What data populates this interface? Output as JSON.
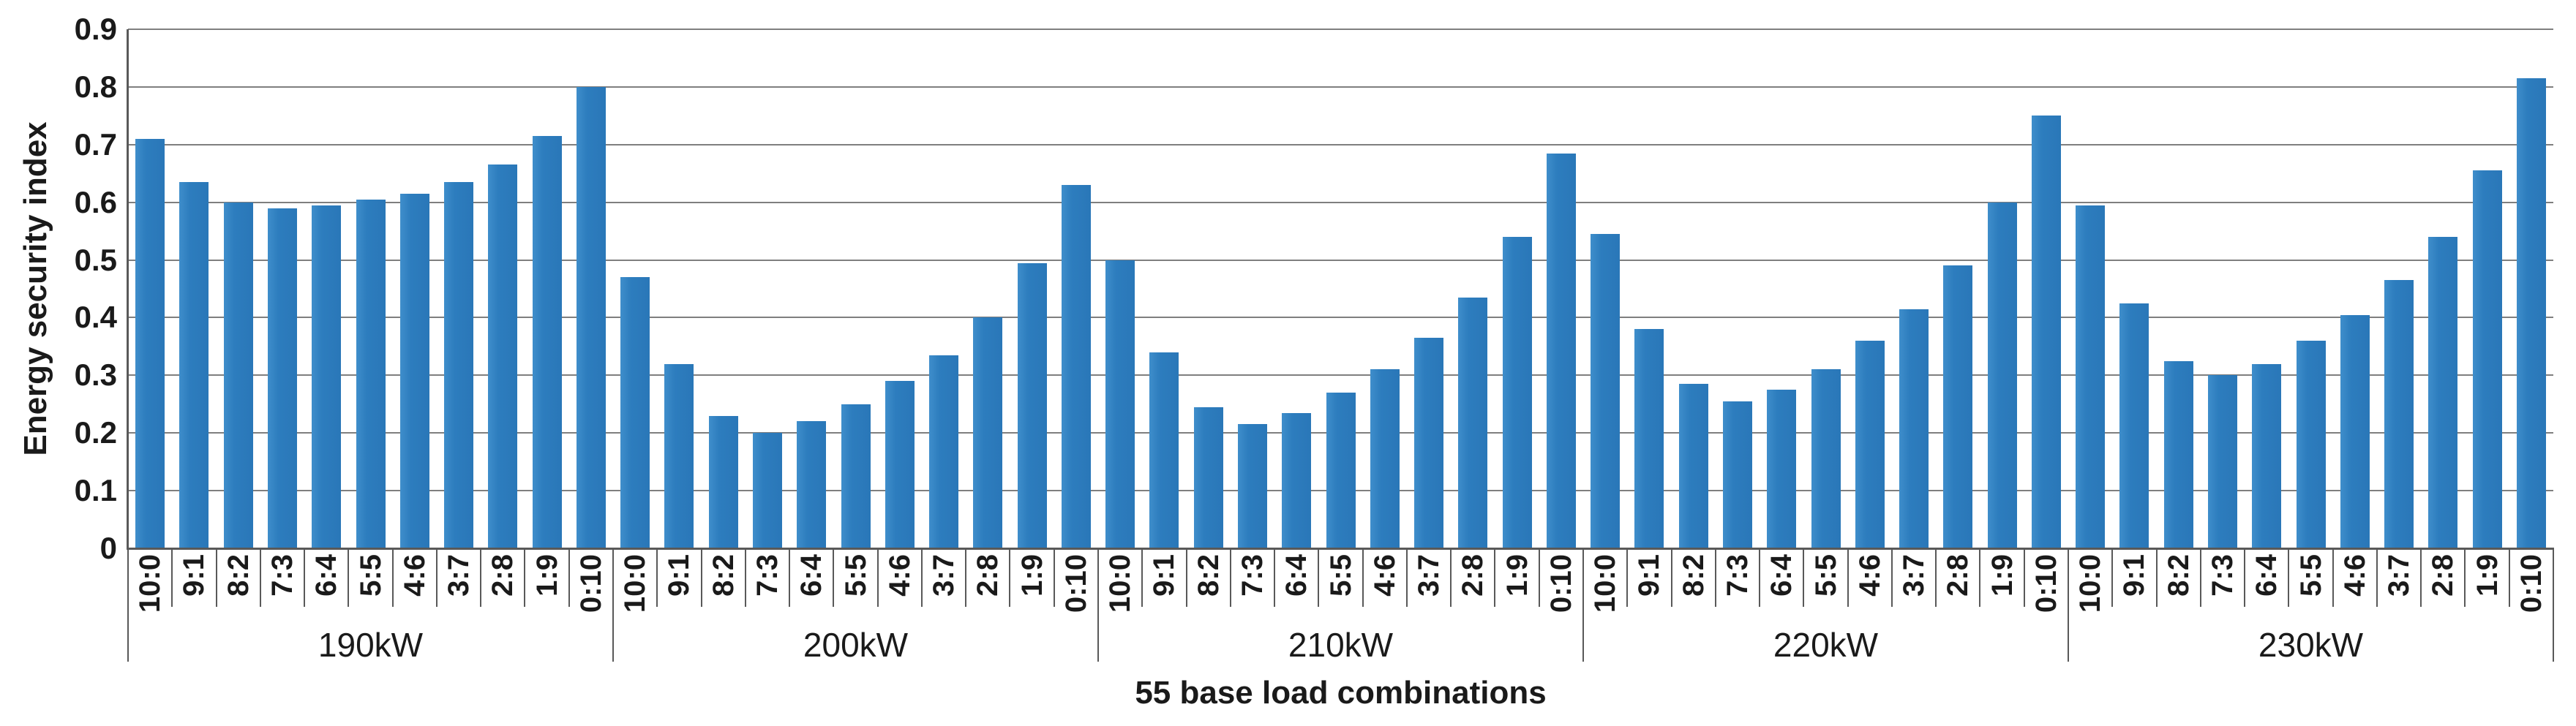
{
  "chart_data": {
    "type": "bar",
    "title": "",
    "xlabel": "55 base load combinations",
    "ylabel": "Energy security index",
    "ylim": [
      0,
      0.9
    ],
    "ytick_step": 0.1,
    "ytick_labels": [
      "0",
      "0.1",
      "0.2",
      "0.3",
      "0.4",
      "0.5",
      "0.6",
      "0.7",
      "0.8",
      "0.9"
    ],
    "grid": true,
    "legend": "none",
    "bar_color": "#2d7dbe",
    "gridline_color": "#7f7f7f",
    "axis_color": "#595959",
    "categories": [
      "10:0",
      "9:1",
      "8:2",
      "7:3",
      "6:4",
      "5:5",
      "4:6",
      "3:7",
      "2:8",
      "1:9",
      "0:10"
    ],
    "series": [
      {
        "name": "190kW",
        "values": [
          0.71,
          0.635,
          0.6,
          0.59,
          0.595,
          0.605,
          0.615,
          0.635,
          0.665,
          0.715,
          0.8
        ]
      },
      {
        "name": "200kW",
        "values": [
          0.47,
          0.32,
          0.23,
          0.2,
          0.22,
          0.25,
          0.29,
          0.335,
          0.4,
          0.495,
          0.63
        ]
      },
      {
        "name": "210kW",
        "values": [
          0.5,
          0.34,
          0.245,
          0.215,
          0.235,
          0.27,
          0.31,
          0.365,
          0.435,
          0.54,
          0.685
        ]
      },
      {
        "name": "220kW",
        "values": [
          0.545,
          0.38,
          0.285,
          0.255,
          0.275,
          0.31,
          0.36,
          0.415,
          0.49,
          0.6,
          0.75
        ]
      },
      {
        "name": "230kW",
        "values": [
          0.595,
          0.425,
          0.325,
          0.3,
          0.32,
          0.36,
          0.405,
          0.465,
          0.54,
          0.655,
          0.815
        ]
      }
    ]
  }
}
